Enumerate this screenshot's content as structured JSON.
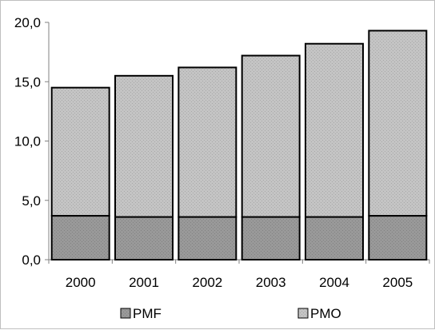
{
  "chart_data": {
    "type": "bar",
    "stacked": true,
    "categories": [
      "2000",
      "2001",
      "2002",
      "2003",
      "2004",
      "2005"
    ],
    "series": [
      {
        "name": "PMF",
        "values": [
          3.7,
          3.6,
          3.6,
          3.6,
          3.6,
          3.7
        ],
        "color": "#969696"
      },
      {
        "name": "PMO",
        "values": [
          10.8,
          11.9,
          12.6,
          13.6,
          14.6,
          15.6
        ],
        "color": "#c0c0c0"
      }
    ],
    "ylim": [
      0,
      20
    ],
    "yticks": [
      "0,0",
      "5,0",
      "10,0",
      "15,0",
      "20,0"
    ],
    "ytick_values": [
      0,
      5,
      10,
      15,
      20
    ],
    "grid": false,
    "legend_position": "bottom",
    "title": "",
    "xlabel": "",
    "ylabel": ""
  }
}
